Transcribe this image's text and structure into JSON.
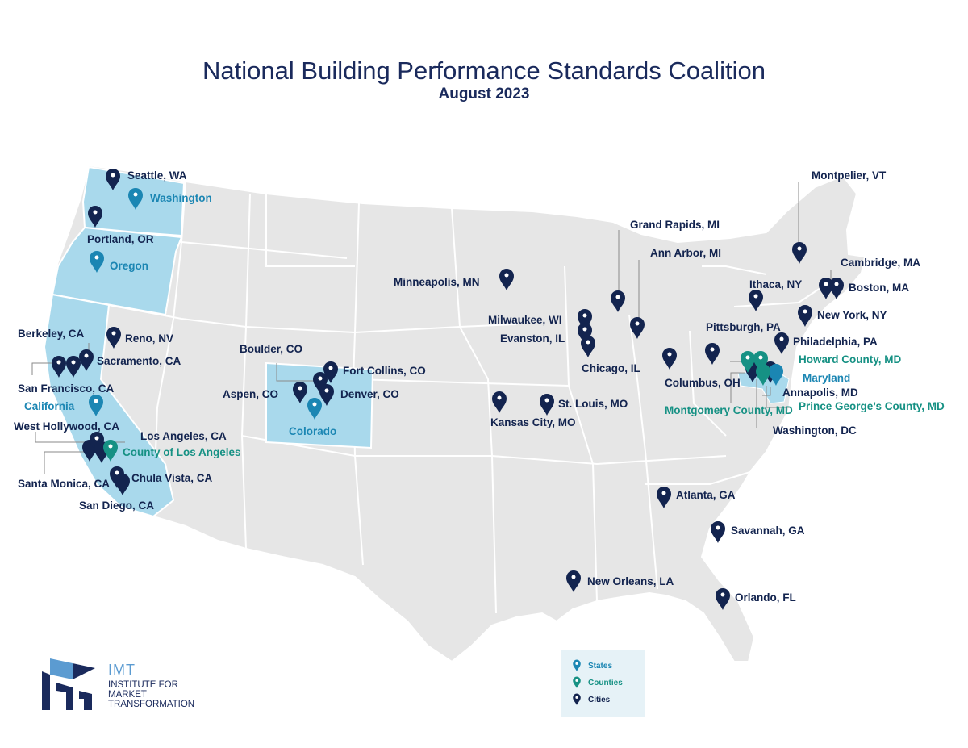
{
  "title": "National Building Performance Standards Coalition",
  "subtitle": "August 2023",
  "colors": {
    "city": "#13244f",
    "state": "#1b86b3",
    "county": "#169184",
    "state_fill": "#a9d9ec",
    "land": "#e6e6e6"
  },
  "cities": [
    "Seattle, WA",
    "Portland, OR",
    "Berkeley, CA",
    "Reno, NV",
    "Sacramento, CA",
    "San Francisco, CA",
    "West Hollywood, CA",
    "Los Angeles, CA",
    "Santa Monica, CA",
    "Chula Vista, CA",
    "San Diego, CA",
    "Boulder, CO",
    "Fort Collins, CO",
    "Aspen, CO",
    "Denver, CO",
    "Minneapolis, MN",
    "Milwaukee, WI",
    "Evanston, IL",
    "Chicago, IL",
    "Kansas City, MO",
    "St. Louis, MO",
    "Grand Rapids, MI",
    "Ann Arbor, MI",
    "Columbus, OH",
    "Pittsburgh, PA",
    "Montpelier, VT",
    "Ithaca, NY",
    "Cambridge, MA",
    "Boston, MA",
    "New York, NY",
    "Philadelphia, PA",
    "Annapolis, MD",
    "Washington, DC",
    "Atlanta, GA",
    "Savannah, GA",
    "New Orleans, LA",
    "Orlando, FL"
  ],
  "states": [
    "Washington",
    "Oregon",
    "California",
    "Colorado",
    "Maryland"
  ],
  "counties": [
    "County of Los Angeles",
    "Howard County, MD",
    "Montgomery County, MD",
    "Prince George’s County, MD"
  ],
  "legend": {
    "states": "States",
    "counties": "Counties",
    "cities": "Cities"
  },
  "logo": {
    "name": "IMT",
    "subtitle": "INSTITUTE FOR MARKET TRANSFORMATION"
  }
}
